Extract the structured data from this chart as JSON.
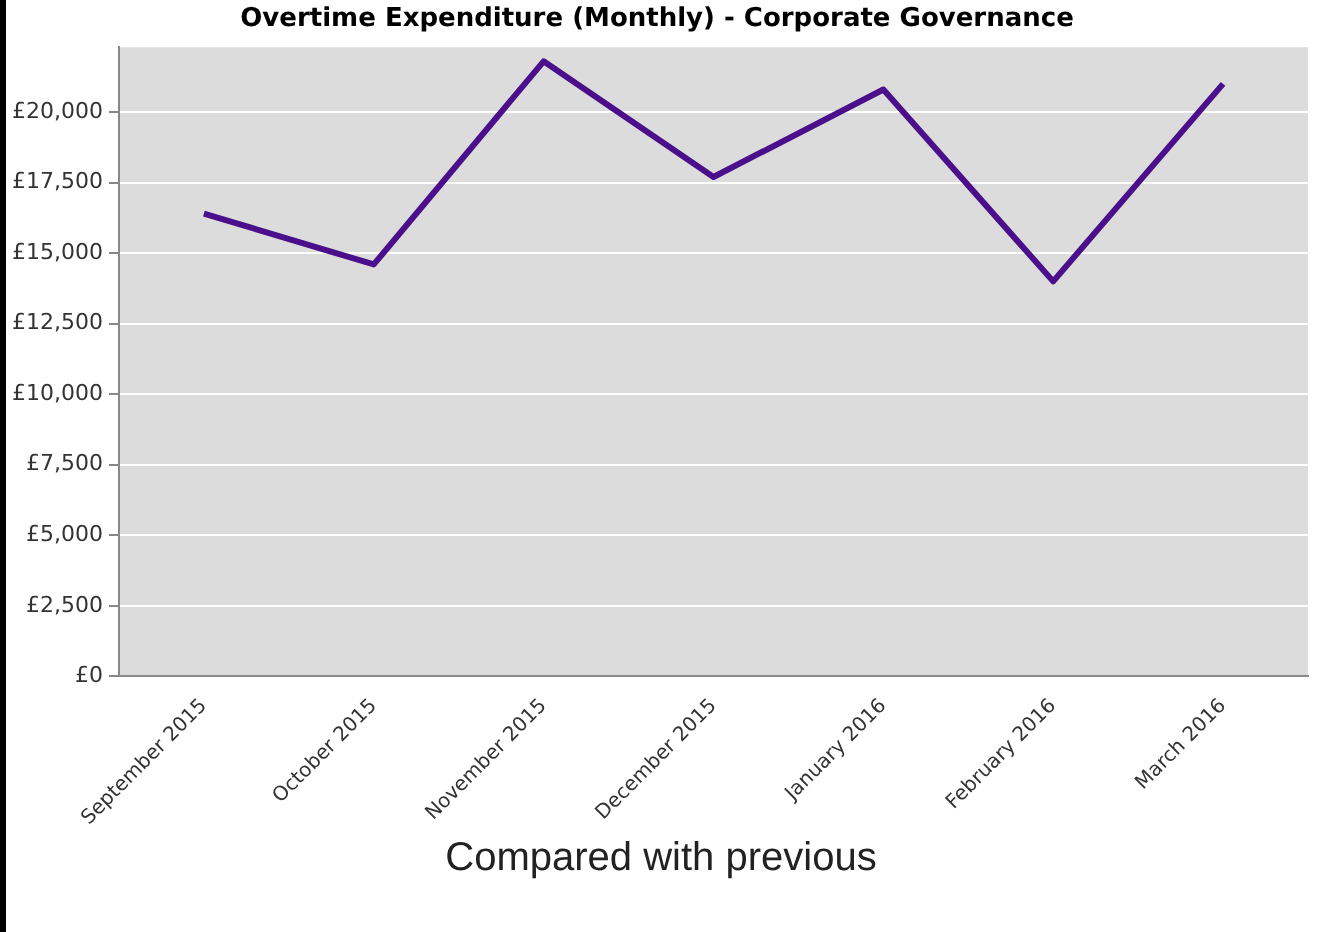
{
  "chart_data": {
    "type": "line",
    "title": "Overtime Expenditure (Monthly) - Corporate Governance",
    "categories": [
      "September 2015",
      "October 2015",
      "November 2015",
      "December 2015",
      "January 2016",
      "February 2016",
      "March 2016"
    ],
    "series": [
      {
        "color": "#4b0f8c",
        "values": [
          16400,
          14600,
          21800,
          17700,
          20800,
          14000,
          21000
        ]
      }
    ],
    "ylim": [
      0,
      22300
    ],
    "yticks": [
      {
        "value": 0,
        "label": "£0"
      },
      {
        "value": 2500,
        "label": "£2,500"
      },
      {
        "value": 5000,
        "label": "£5,000"
      },
      {
        "value": 7500,
        "label": "£7,500"
      },
      {
        "value": 10000,
        "label": "£10,000"
      },
      {
        "value": 12500,
        "label": "£12,500"
      },
      {
        "value": 15000,
        "label": "£15,000"
      },
      {
        "value": 17500,
        "label": "£17,500"
      },
      {
        "value": 20000,
        "label": "£20,000"
      }
    ],
    "grid": "y",
    "legend": false,
    "marker": "none",
    "line_style": "solid",
    "annotations": [
      "Compared with previous"
    ]
  }
}
